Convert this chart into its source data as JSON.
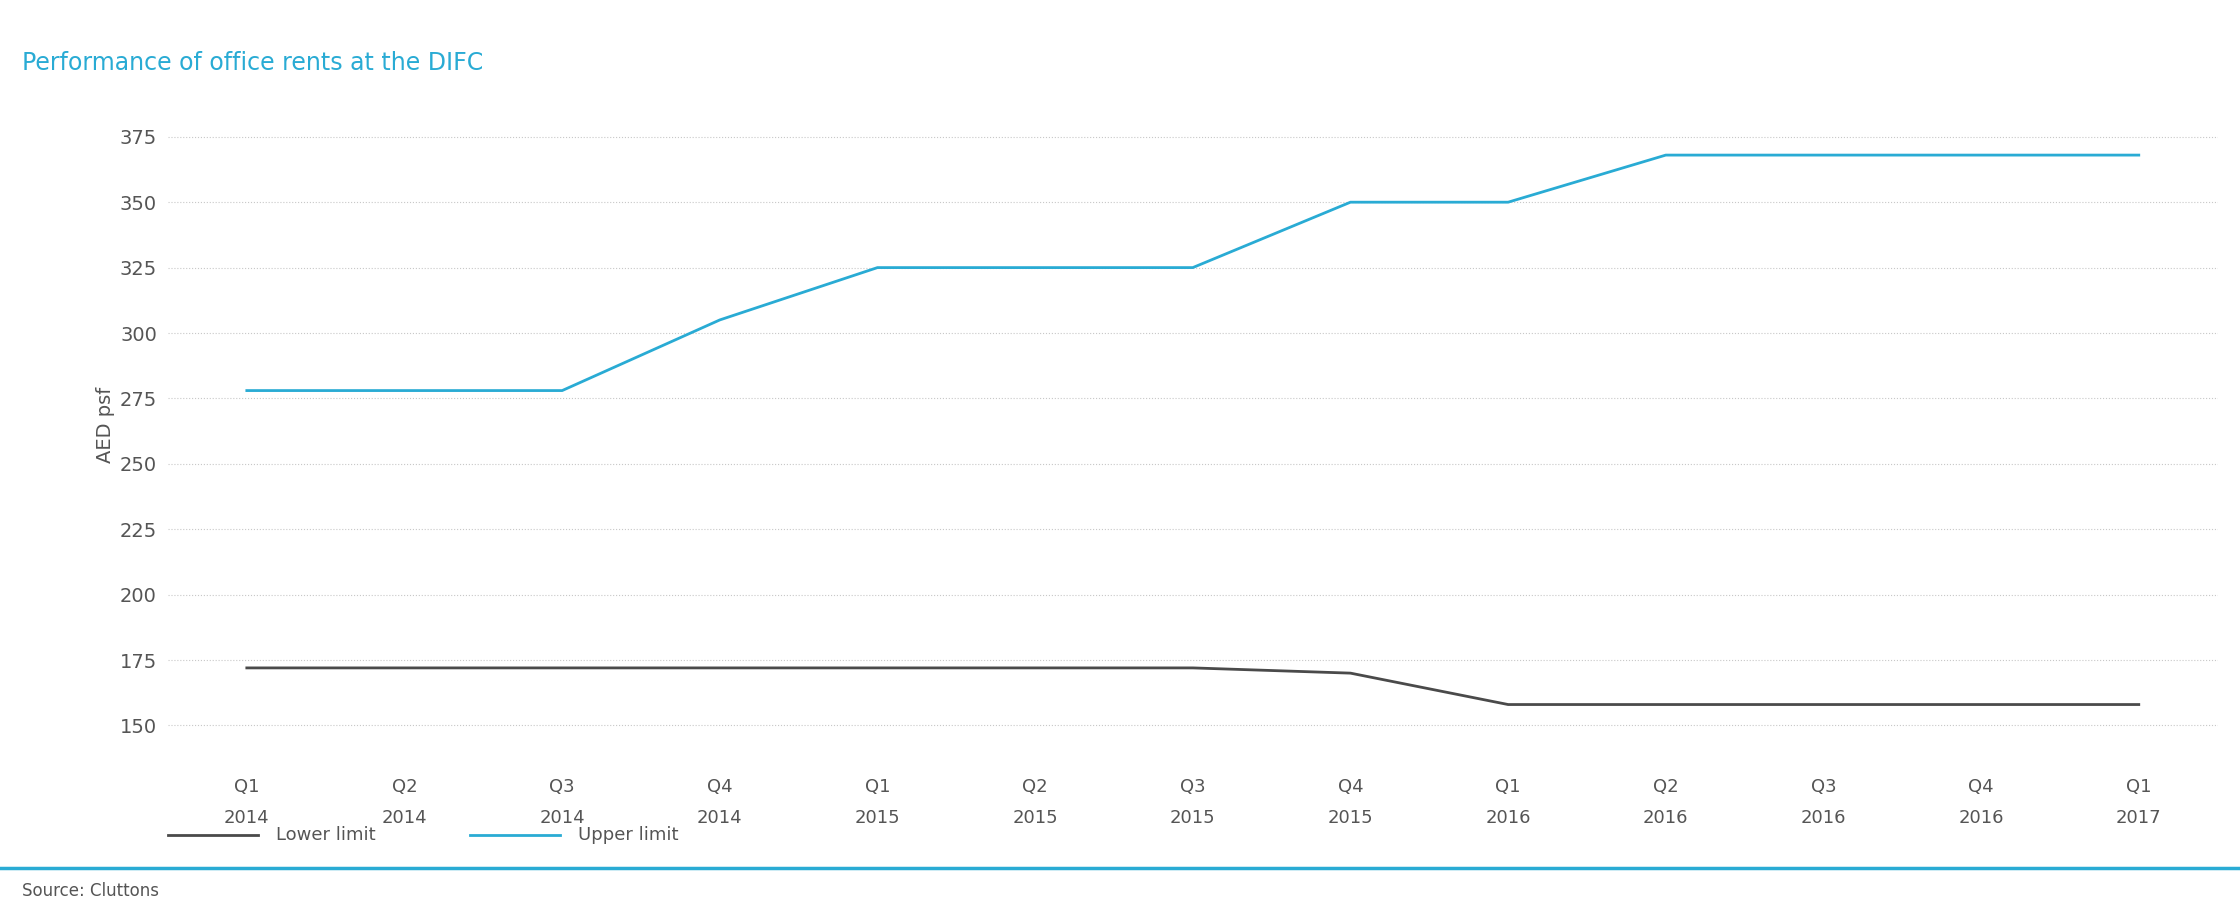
{
  "title": "Performance of office rents at the DIFC",
  "ylabel": "AED psf",
  "source": "Source: Cluttons",
  "x_labels": [
    [
      "Q1",
      "2014"
    ],
    [
      "Q2",
      "2014"
    ],
    [
      "Q3",
      "2014"
    ],
    [
      "Q4",
      "2014"
    ],
    [
      "Q1",
      "2015"
    ],
    [
      "Q2",
      "2015"
    ],
    [
      "Q3",
      "2015"
    ],
    [
      "Q4",
      "2015"
    ],
    [
      "Q1",
      "2016"
    ],
    [
      "Q2",
      "2016"
    ],
    [
      "Q3",
      "2016"
    ],
    [
      "Q4",
      "2016"
    ],
    [
      "Q1",
      "2017"
    ]
  ],
  "upper_limit": [
    278,
    278,
    278,
    305,
    325,
    325,
    325,
    350,
    350,
    368,
    368,
    368,
    368
  ],
  "lower_limit": [
    172,
    172,
    172,
    172,
    172,
    172,
    172,
    170,
    158,
    158,
    158,
    158,
    158
  ],
  "upper_color": "#29ABD4",
  "lower_color": "#4a4a4a",
  "background_color": "#ffffff",
  "grid_color": "#c8c8c8",
  "title_color": "#29ABD4",
  "source_color": "#555555",
  "ytick_color": "#555555",
  "xtick_color": "#555555",
  "yticks": [
    150,
    175,
    200,
    225,
    250,
    275,
    300,
    325,
    350,
    375
  ],
  "ylim": [
    138,
    392
  ],
  "legend_lower": "Lower limit",
  "legend_upper": "Upper limit",
  "top_bar_color": "#29ABD4",
  "bottom_bar_color": "#29ABD4"
}
